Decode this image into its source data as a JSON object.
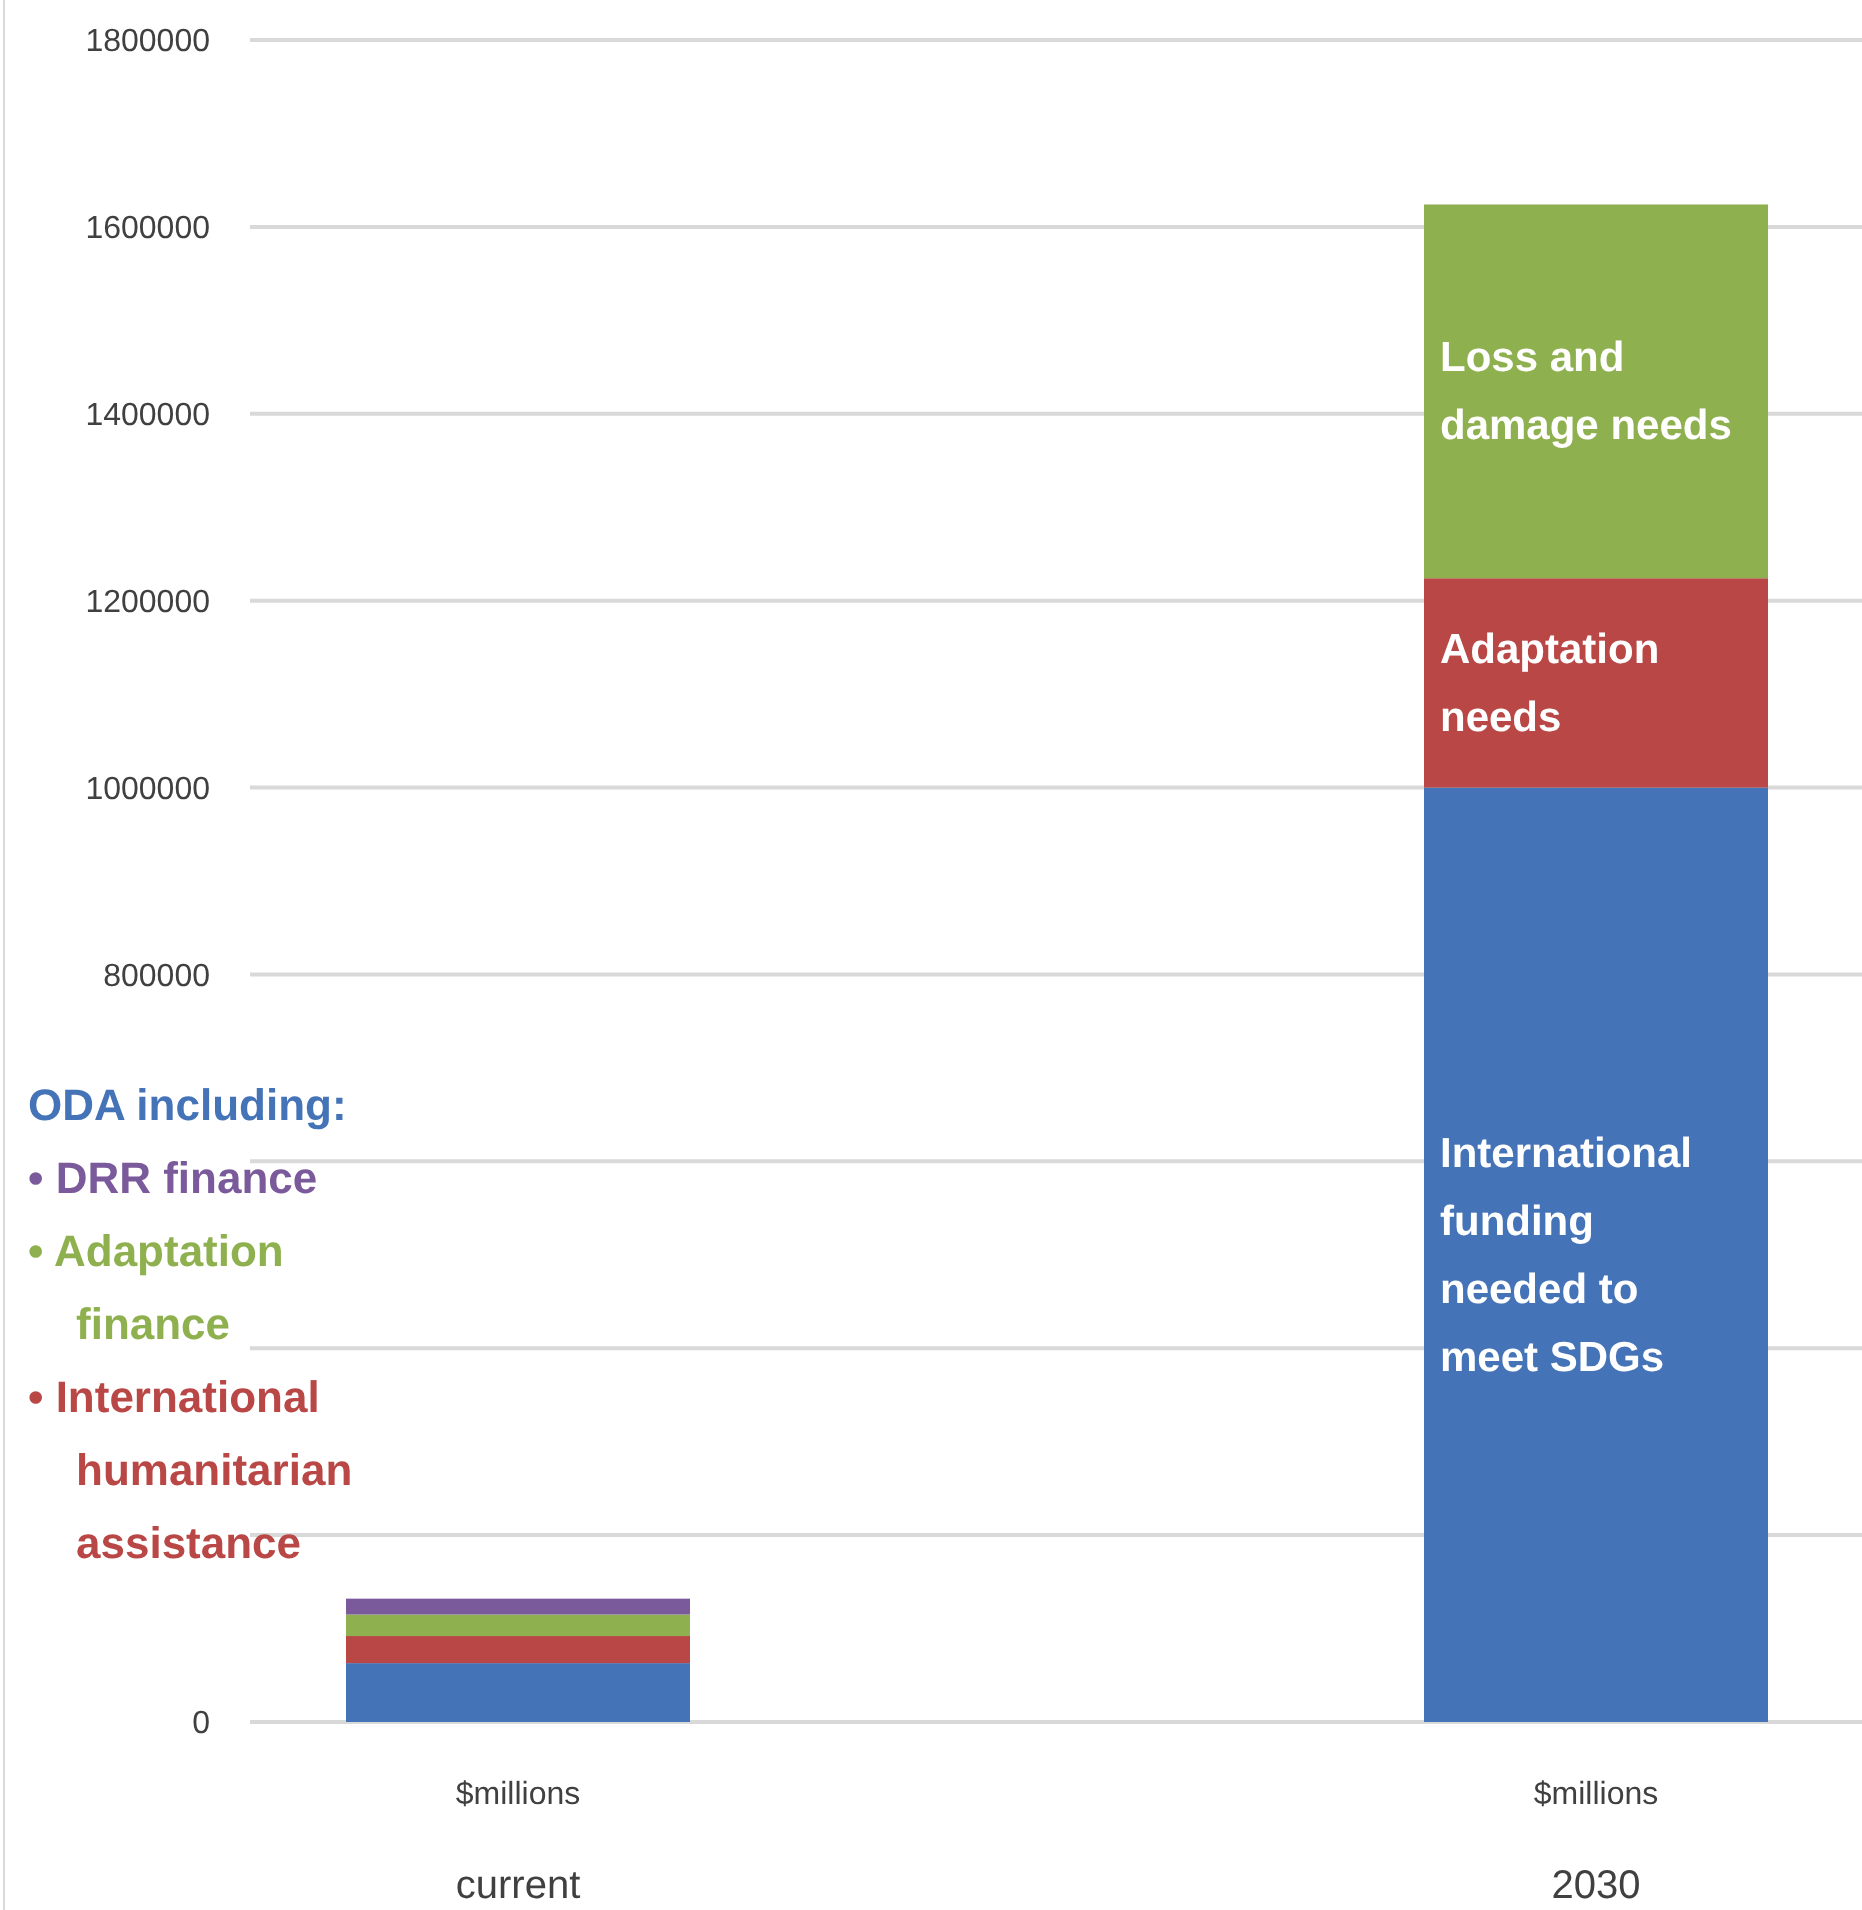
{
  "chart_data": {
    "type": "bar",
    "stacked": true,
    "categories": [
      "$millions\ncurrent",
      "$millions\n2030"
    ],
    "series": [
      {
        "color": "#4573b7",
        "values": [
          63000,
          1000000
        ]
      },
      {
        "color": "#b94745",
        "values": [
          29000,
          224000
        ]
      },
      {
        "color": "#8fb04f",
        "values": [
          23000,
          400000
        ]
      },
      {
        "color": "#7a5a9b",
        "values": [
          17000,
          null
        ]
      }
    ],
    "ylim": [
      0,
      1800000
    ],
    "yticks": [
      0,
      {
        "value": 200000,
        "label": null
      },
      {
        "value": 400000,
        "label": null
      },
      {
        "value": 600000,
        "label": null
      },
      800000,
      1000000,
      1200000,
      1400000,
      1600000,
      1800000
    ],
    "grid": "y",
    "annotations": [
      "ODA including:",
      "• DRR finance",
      "• Adaptation finance",
      "• International humanitarian assistance",
      "Loss and damage needs",
      "Adaptation needs",
      "International funding needed to meet SDGs"
    ]
  }
}
